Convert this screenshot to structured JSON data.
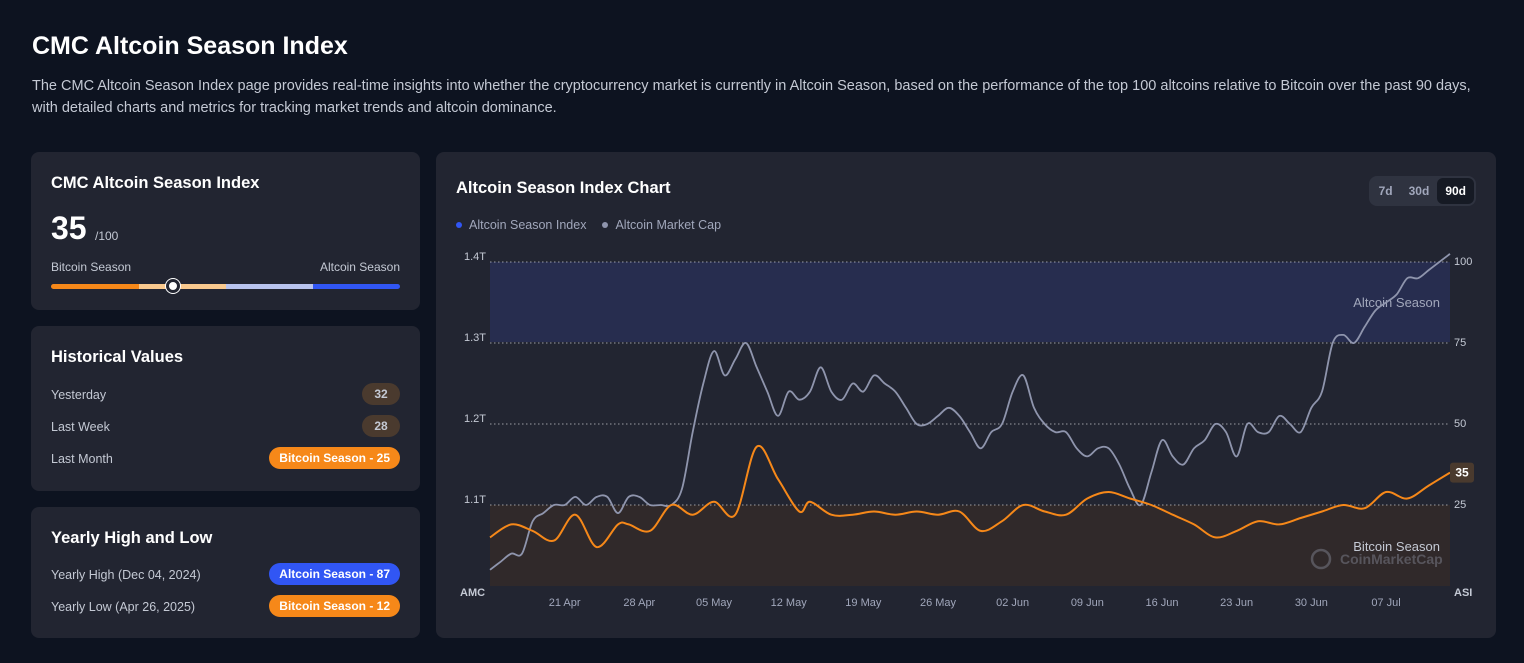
{
  "page": {
    "title": "CMC Altcoin Season Index",
    "description": "The CMC Altcoin Season Index page provides real-time insights into whether the cryptocurrency market is currently in Altcoin Season, based on the performance of the top 100 altcoins relative to Bitcoin over the past 90 days, with detailed charts and metrics for tracking market trends and altcoin dominance."
  },
  "index_card": {
    "title": "CMC Altcoin Season Index",
    "value": "35",
    "max_label": "/100",
    "left_label": "Bitcoin Season",
    "right_label": "Altcoin Season",
    "gauge_value": 35
  },
  "historical": {
    "title": "Historical Values",
    "rows": [
      {
        "label": "Yesterday",
        "value": "32",
        "style": "neutral"
      },
      {
        "label": "Last Week",
        "value": "28",
        "style": "neutral"
      },
      {
        "label": "Last Month",
        "value": "Bitcoin Season - 25",
        "style": "orange"
      }
    ]
  },
  "yearly": {
    "title": "Yearly High and Low",
    "high_label": "Yearly High",
    "high_date": "(Dec 04, 2024)",
    "high_value": "Altcoin Season - 87",
    "low_label": "Yearly Low",
    "low_date": "(Apr 26, 2025)",
    "low_value": "Bitcoin Season - 12"
  },
  "chart_card": {
    "title": "Altcoin Season Index Chart",
    "ranges": [
      "7d",
      "30d",
      "90d"
    ],
    "active_range": "90d",
    "watermark": "CoinMarketCap",
    "zone_top_label": "Altcoin Season",
    "zone_bottom_label": "Bitcoin Season",
    "current_value_label": "35"
  },
  "colors": {
    "index_line": "#f68819",
    "index_legend_dot": "#3156f4",
    "market_cap_line": "#8f95ad",
    "altcoin_zone": "#272d4f",
    "bitcoin_zone": "#30292a",
    "gauge": [
      "#f68819",
      "#f9c98e",
      "#b8c3ee",
      "#3156f4"
    ]
  },
  "chart_data": {
    "type": "line",
    "title": "Altcoin Season Index Chart",
    "legend_position": "top-left",
    "grid": true,
    "x_tick_labels": [
      "21 Apr",
      "28 Apr",
      "05 May",
      "12 May",
      "19 May",
      "26 May",
      "02 Jun",
      "09 Jun",
      "16 Jun",
      "23 Jun",
      "30 Jun",
      "07 Jul"
    ],
    "x_axis_left_label": "AMC",
    "x_axis_right_label": "ASI",
    "x_range_days": [
      0,
      90
    ],
    "left_axis": {
      "label": "",
      "ticks": [
        "1.1T",
        "1.2T",
        "1.3T",
        "1.4T"
      ],
      "tick_values": [
        1.1,
        1.2,
        1.3,
        1.4
      ],
      "range": [
        1.0,
        1.4
      ],
      "unit": "T"
    },
    "right_axis": {
      "label": "",
      "ticks": [
        "25",
        "50",
        "75",
        "100"
      ],
      "tick_values": [
        25,
        50,
        75,
        100
      ],
      "range": [
        0,
        100
      ]
    },
    "zones": [
      {
        "name": "Altcoin Season",
        "from": 75,
        "to": 100
      },
      {
        "name": "Bitcoin Season",
        "from": 0,
        "to": 25
      }
    ],
    "series": [
      {
        "name": "Altcoin Season Index",
        "axis": "right",
        "x": [
          0,
          2,
          4,
          6,
          8,
          10,
          12,
          13,
          15,
          17,
          19,
          21,
          23,
          25,
          27,
          29,
          30,
          32,
          34,
          36,
          38,
          40,
          42,
          44,
          46,
          48,
          50,
          52,
          54,
          56,
          58,
          60,
          62,
          64,
          66,
          68,
          70,
          72,
          74,
          76,
          78,
          80,
          82,
          84,
          86,
          88,
          90
        ],
        "values": [
          15,
          19,
          17,
          14,
          22,
          12,
          19,
          19,
          17,
          25,
          22,
          26,
          22,
          43,
          33,
          23,
          26,
          22,
          22,
          23,
          22,
          23,
          22,
          23,
          17,
          20,
          25,
          23,
          22,
          27,
          29,
          27,
          25,
          22,
          19,
          15,
          17,
          20,
          19,
          21,
          23,
          25,
          24,
          29,
          27,
          31,
          35
        ]
      },
      {
        "name": "Altcoin Market Cap",
        "axis": "left",
        "x": [
          0,
          1,
          2,
          3,
          4,
          5,
          6,
          7,
          8,
          9,
          10,
          11,
          12,
          13,
          14,
          15,
          16,
          17,
          18,
          19,
          20,
          21,
          22,
          23,
          24,
          25,
          26,
          27,
          28,
          29,
          30,
          31,
          32,
          33,
          34,
          35,
          36,
          37,
          38,
          39,
          40,
          41,
          42,
          43,
          44,
          45,
          46,
          47,
          48,
          49,
          50,
          51,
          52,
          53,
          54,
          55,
          56,
          57,
          58,
          59,
          60,
          61,
          62,
          63,
          64,
          65,
          66,
          67,
          68,
          69,
          70,
          71,
          72,
          73,
          74,
          75,
          76,
          77,
          78,
          79,
          80,
          81,
          82,
          83,
          84,
          85,
          86,
          87,
          88,
          89,
          90
        ],
        "values": [
          1.02,
          1.03,
          1.04,
          1.04,
          1.08,
          1.09,
          1.1,
          1.1,
          1.11,
          1.1,
          1.11,
          1.11,
          1.09,
          1.11,
          1.11,
          1.1,
          1.1,
          1.1,
          1.12,
          1.19,
          1.25,
          1.29,
          1.26,
          1.28,
          1.3,
          1.27,
          1.24,
          1.21,
          1.24,
          1.23,
          1.24,
          1.27,
          1.24,
          1.23,
          1.25,
          1.24,
          1.26,
          1.25,
          1.24,
          1.22,
          1.2,
          1.2,
          1.21,
          1.22,
          1.21,
          1.19,
          1.17,
          1.19,
          1.2,
          1.24,
          1.26,
          1.22,
          1.2,
          1.19,
          1.19,
          1.17,
          1.16,
          1.17,
          1.17,
          1.15,
          1.12,
          1.1,
          1.14,
          1.18,
          1.16,
          1.15,
          1.17,
          1.18,
          1.2,
          1.19,
          1.16,
          1.2,
          1.19,
          1.19,
          1.21,
          1.2,
          1.19,
          1.22,
          1.24,
          1.3,
          1.31,
          1.3,
          1.32,
          1.34,
          1.35,
          1.36,
          1.38,
          1.38,
          1.39,
          1.4,
          1.41
        ]
      }
    ]
  }
}
